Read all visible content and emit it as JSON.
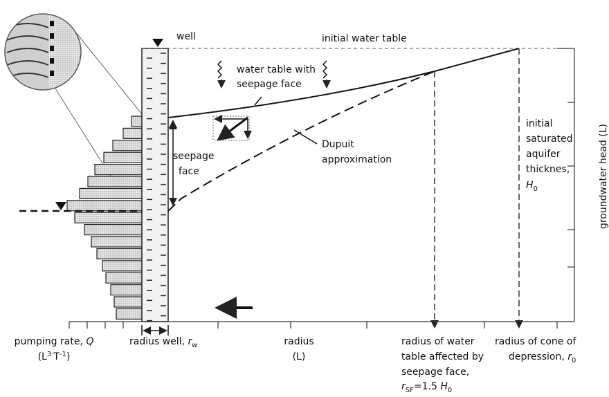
{
  "labels": {
    "well": "well",
    "initial_water_table": "initial water table",
    "water_table_seepage": [
      "water table with",
      "seepage face"
    ],
    "seepage_face": [
      "seepage",
      "face"
    ],
    "dupuit": [
      "Dupuit",
      "approximation"
    ],
    "aquifer": {
      "lines": [
        "initial",
        "saturated",
        "aquifer",
        "thicknes,"
      ],
      "symbol": "H",
      "sub": "0"
    },
    "y_axis": "groundwater head (L)",
    "pumping": {
      "text": "pumping rate, ",
      "symbol": "Q",
      "unit_open": "(L",
      "sup1": "3·",
      "unit_mid": "T",
      "sup2": "-1",
      "unit_close": ")"
    },
    "radius_well": {
      "text": "radius well, ",
      "symbol": "r",
      "sub": "w"
    },
    "radius": [
      "radius",
      "(L)"
    ],
    "radius_sf": {
      "lines": [
        "radius of water",
        "table affected by",
        "seepage face,"
      ],
      "symbol": "r",
      "sub": "SF",
      "rest": "=1.5 ",
      "symbol2": "H",
      "sub2": "0"
    },
    "radius_cone": {
      "line1": "radius of cone of",
      "text": "depression, ",
      "symbol": "r",
      "sub": "0"
    }
  }
}
